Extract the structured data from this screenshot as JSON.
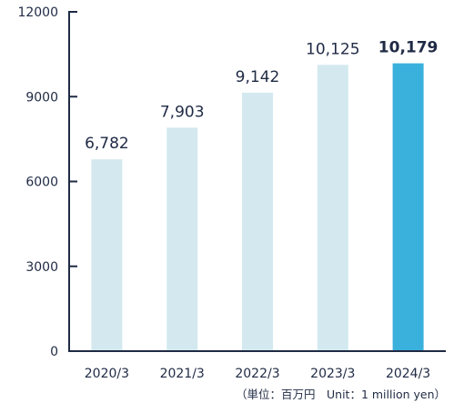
{
  "chart_data": {
    "type": "bar",
    "categories": [
      "2020/3",
      "2021/3",
      "2022/3",
      "2023/3",
      "2024/3"
    ],
    "values": [
      6782,
      7903,
      9142,
      10125,
      10179
    ],
    "data_labels": [
      "6,782",
      "7,903",
      "9,142",
      "10,125",
      "10,179"
    ],
    "highlight_index": 4,
    "ylim": [
      0,
      12000
    ],
    "yticks": [
      0,
      3000,
      6000,
      9000,
      12000
    ],
    "ytick_labels": [
      "0",
      "3000",
      "6000",
      "9000",
      "12000"
    ],
    "unit_note": "（単位：百万円　Unit：1 million yen）",
    "grid": false,
    "colors": {
      "bar": "#d3e9ef",
      "highlight": "#3ab0dd",
      "axis": "#1f2a44",
      "text": "#1f2a44"
    }
  }
}
